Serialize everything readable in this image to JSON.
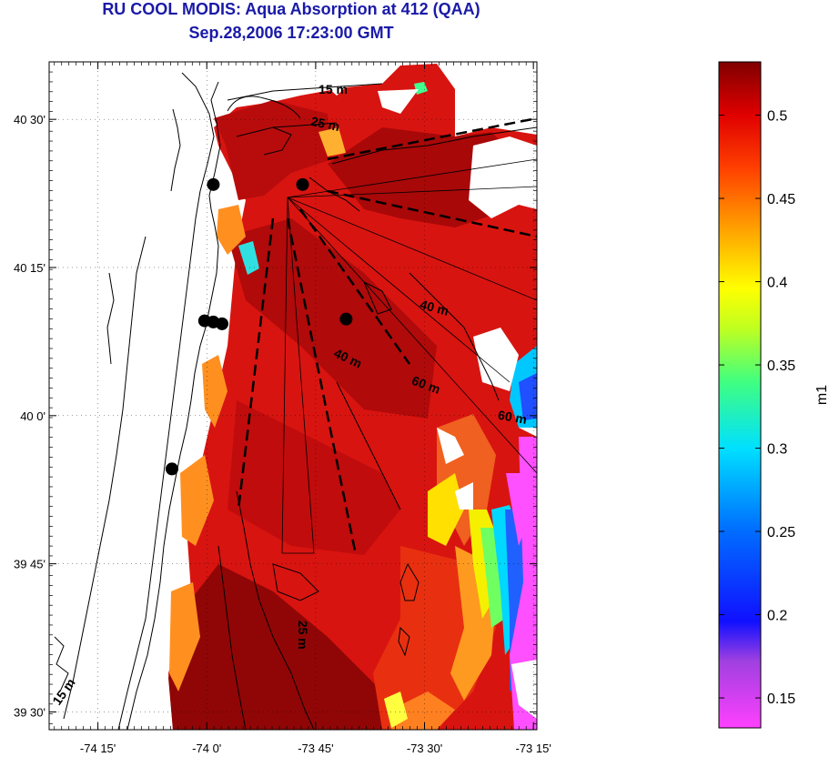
{
  "header": {
    "title": "RU COOL MODIS: Aqua Absorption at 412 (QAA)",
    "subtitle": "Sep.28,2006 17:23:00 GMT"
  },
  "map": {
    "lat_ticks": [
      {
        "value": 40.5,
        "label": "40 30'"
      },
      {
        "value": 40.25,
        "label": "40 15'"
      },
      {
        "value": 40.0,
        "label": "40 0'"
      },
      {
        "value": 39.75,
        "label": "39 45'"
      },
      {
        "value": 39.5,
        "label": "39 30'"
      }
    ],
    "lon_ticks": [
      {
        "value": -74.25,
        "label": "-74 15'"
      },
      {
        "value": -74.0,
        "label": "-74 0'"
      },
      {
        "value": -73.75,
        "label": "-73 45'"
      },
      {
        "value": -73.5,
        "label": "-73 30'"
      },
      {
        "value": -73.25,
        "label": "-73 15'"
      }
    ],
    "contour_labels": [
      {
        "text": "15 m",
        "lon": -73.71,
        "lat": 40.543,
        "rotate": 0
      },
      {
        "text": "25 m",
        "lon": -73.73,
        "lat": 40.485,
        "rotate": 12
      },
      {
        "text": "40 m",
        "lon": -73.48,
        "lat": 40.175,
        "rotate": 15
      },
      {
        "text": "40 m",
        "lon": -73.68,
        "lat": 40.09,
        "rotate": 25
      },
      {
        "text": "60 m",
        "lon": -73.5,
        "lat": 40.045,
        "rotate": 20
      },
      {
        "text": "60 m",
        "lon": -73.3,
        "lat": 39.99,
        "rotate": 10
      },
      {
        "text": "25 m",
        "lon": -73.79,
        "lat": 39.63,
        "rotate": 90
      },
      {
        "text": "15 m",
        "lon": -74.32,
        "lat": 39.53,
        "rotate": -55
      }
    ],
    "stations": [
      {
        "lon": -73.985,
        "lat": 40.39
      },
      {
        "lon": -73.78,
        "lat": 40.39
      },
      {
        "lon": -73.68,
        "lat": 40.163
      },
      {
        "lon": -74.005,
        "lat": 40.16
      },
      {
        "lon": -73.985,
        "lat": 40.158
      },
      {
        "lon": -73.965,
        "lat": 40.155
      },
      {
        "lon": -74.08,
        "lat": 39.91
      }
    ]
  },
  "colorbar": {
    "unit_label": "m1",
    "ticks": [
      "0.5",
      "0.45",
      "0.4",
      "0.35",
      "0.3",
      "0.25",
      "0.2",
      "0.15"
    ],
    "tick_values": [
      0.5,
      0.45,
      0.4,
      0.35,
      0.3,
      0.25,
      0.2,
      0.15
    ],
    "min": 0.132,
    "max": 0.532
  }
}
